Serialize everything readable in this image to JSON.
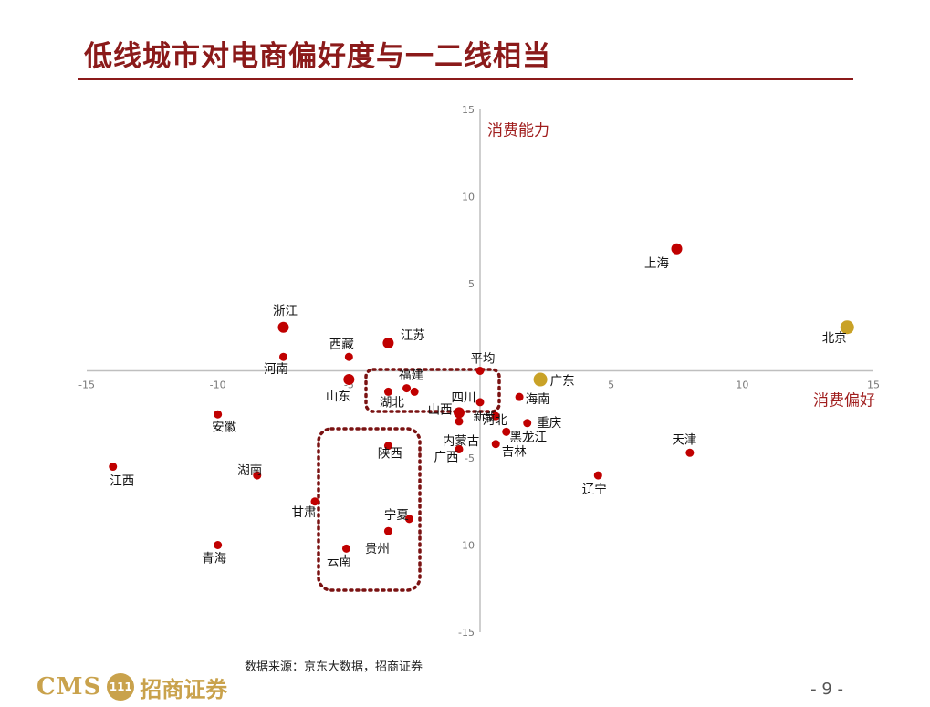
{
  "slide": {
    "title": "低线城市对电商偏好度与一二线相当",
    "source": "数据来源：京东大数据，招商证券",
    "page": "- 9 -",
    "logo_text": "CMS",
    "logo_badge": "111",
    "logo_cn": "招商证券"
  },
  "colors": {
    "title": "#8b1a1a",
    "point": "#c00000",
    "highlight": "#c9a227",
    "axis": "#bfbfbf",
    "box": "#7a1212"
  },
  "chart_data": {
    "type": "scatter",
    "xlabel": "消费偏好",
    "ylabel": "消费能力",
    "xlim": [
      -15,
      15
    ],
    "ylim": [
      -15,
      15
    ],
    "x_ticks": [
      -15,
      -10,
      -5,
      5,
      10,
      15
    ],
    "y_ticks": [
      15,
      10,
      5,
      -5,
      -10,
      -15
    ],
    "points": [
      {
        "name": "上海",
        "x": 7.5,
        "y": 7.0
      },
      {
        "name": "北京",
        "x": 14.0,
        "y": 2.5,
        "highlight": true
      },
      {
        "name": "浙江",
        "x": -7.5,
        "y": 2.5
      },
      {
        "name": "西藏",
        "x": -5.0,
        "y": 0.8
      },
      {
        "name": "江苏",
        "x": -3.5,
        "y": 1.6
      },
      {
        "name": "河南",
        "x": -7.5,
        "y": 0.8
      },
      {
        "name": "平均",
        "x": 0.0,
        "y": 0.0
      },
      {
        "name": "广东",
        "x": 2.3,
        "y": -0.5,
        "highlight": true
      },
      {
        "name": "山东",
        "x": -5.0,
        "y": -0.5
      },
      {
        "name": "福建",
        "x": -2.8,
        "y": -1.0
      },
      {
        "name": "湖北",
        "x": -3.5,
        "y": -1.2
      },
      {
        "name": "山西",
        "x": -2.5,
        "y": -1.2
      },
      {
        "name": "新疆",
        "x": 0.0,
        "y": -1.8
      },
      {
        "name": "四川",
        "x": -0.8,
        "y": -2.4
      },
      {
        "name": "海南",
        "x": 1.5,
        "y": -1.5
      },
      {
        "name": "河北",
        "x": 0.6,
        "y": -2.6
      },
      {
        "name": "重庆",
        "x": 1.8,
        "y": -3.0
      },
      {
        "name": "内蒙古",
        "x": -0.8,
        "y": -2.9
      },
      {
        "name": "黑龙江",
        "x": 1.0,
        "y": -3.5
      },
      {
        "name": "吉林",
        "x": 0.6,
        "y": -4.2
      },
      {
        "name": "广西",
        "x": -0.8,
        "y": -4.5
      },
      {
        "name": "安徽",
        "x": -10.0,
        "y": -2.5
      },
      {
        "name": "陕西",
        "x": -3.5,
        "y": -4.3
      },
      {
        "name": "江西",
        "x": -14.0,
        "y": -5.5
      },
      {
        "name": "湖南",
        "x": -8.5,
        "y": -6.0
      },
      {
        "name": "甘肃",
        "x": -6.3,
        "y": -7.5
      },
      {
        "name": "宁夏",
        "x": -2.7,
        "y": -8.5
      },
      {
        "name": "贵州",
        "x": -3.5,
        "y": -9.2
      },
      {
        "name": "云南",
        "x": -5.1,
        "y": -10.2
      },
      {
        "name": "青海",
        "x": -10.0,
        "y": -10.0
      },
      {
        "name": "天津",
        "x": 8.0,
        "y": -4.7
      },
      {
        "name": "辽宁",
        "x": 4.5,
        "y": -6.0
      }
    ]
  }
}
